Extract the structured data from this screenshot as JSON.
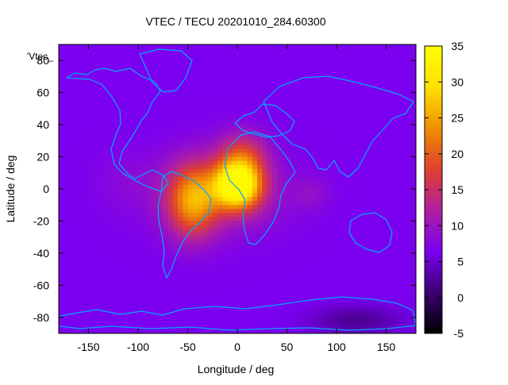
{
  "chart_data": {
    "type": "heatmap",
    "title": "VTEC / TECU 20201010_284.60300",
    "key_label": "'Vtec_",
    "xlabel": "Longitude / deg",
    "ylabel": "Latitude / deg",
    "xlim": [
      -180,
      180
    ],
    "ylim": [
      -90,
      90
    ],
    "x_ticks": [
      -150,
      -100,
      -50,
      0,
      50,
      100,
      150
    ],
    "y_ticks": [
      -80,
      -60,
      -40,
      -20,
      0,
      20,
      40,
      60,
      80
    ],
    "colorbar": {
      "range": [
        -5,
        35
      ],
      "ticks": [
        -5,
        0,
        5,
        10,
        15,
        20,
        25,
        30,
        35
      ],
      "palette": [
        "#000000",
        "#3b0070",
        "#7a00f0",
        "#b020a0",
        "#e0402e",
        "#f09000",
        "#ffe000",
        "#ffff00"
      ]
    },
    "background_vtec": 6.5,
    "features": [
      {
        "name": "main-peak",
        "lon": 0,
        "lat": 2,
        "peak": 34
      },
      {
        "name": "south-america-peak",
        "lon": -45,
        "lat": -8,
        "peak": 28
      },
      {
        "name": "north-africa-peak",
        "lon": 5,
        "lat": 20,
        "peak": 24
      },
      {
        "name": "wide-enhancement",
        "lon": -20,
        "lat": -2,
        "peak": 18
      },
      {
        "name": "indian-ocean-tail",
        "lon": 75,
        "lat": -3,
        "peak": 13
      },
      {
        "name": "east-pacific-tail",
        "lon": -115,
        "lat": 5,
        "peak": 11
      },
      {
        "name": "antarctic-minimum",
        "lon": 120,
        "lat": -82,
        "peak": 0
      }
    ],
    "grid": false,
    "legend": "top-left"
  }
}
